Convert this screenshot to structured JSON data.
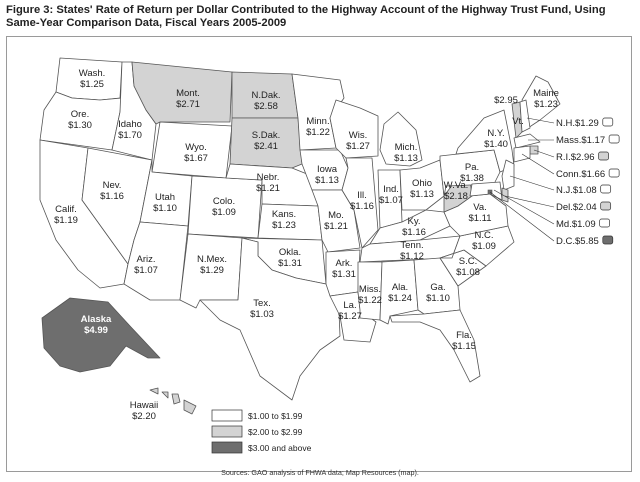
{
  "title": "Figure 3: States' Rate of Return per Dollar Contributed to the Highway Account of the Highway Trust Fund, Using Same-Year Comparison Data, Fiscal Years 2005-2009",
  "source": "Sources: GAO analysis of FHWA data; Map Resources (map).",
  "colors": {
    "low": "#ffffff",
    "mid": "#d3d3d3",
    "high": "#6e6e6e",
    "outline": "#555555"
  },
  "legend": [
    {
      "label": "$1.00 to $1.99",
      "category": "low"
    },
    {
      "label": "$2.00 to $2.99",
      "category": "mid"
    },
    {
      "label": "$3.00 and above",
      "category": "high"
    }
  ],
  "states": [
    {
      "name": "Wash.",
      "value": "$1.25",
      "category": "low"
    },
    {
      "name": "Ore.",
      "value": "$1.30",
      "category": "low"
    },
    {
      "name": "Calif.",
      "value": "$1.19",
      "category": "low"
    },
    {
      "name": "Idaho",
      "value": "$1.70",
      "category": "low"
    },
    {
      "name": "Nev.",
      "value": "$1.16",
      "category": "low"
    },
    {
      "name": "Mont.",
      "value": "$2.71",
      "category": "mid"
    },
    {
      "name": "Wyo.",
      "value": "$1.67",
      "category": "low"
    },
    {
      "name": "Utah",
      "value": "$1.10",
      "category": "low"
    },
    {
      "name": "Ariz.",
      "value": "$1.07",
      "category": "low"
    },
    {
      "name": "Colo.",
      "value": "$1.09",
      "category": "low"
    },
    {
      "name": "N.Mex.",
      "value": "$1.29",
      "category": "low"
    },
    {
      "name": "N.Dak.",
      "value": "$2.58",
      "category": "mid"
    },
    {
      "name": "S.Dak.",
      "value": "$2.41",
      "category": "mid"
    },
    {
      "name": "Nebr.",
      "value": "$1.21",
      "category": "low"
    },
    {
      "name": "Kans.",
      "value": "$1.23",
      "category": "low"
    },
    {
      "name": "Okla.",
      "value": "$1.31",
      "category": "low"
    },
    {
      "name": "Tex.",
      "value": "$1.03",
      "category": "low"
    },
    {
      "name": "Minn.",
      "value": "$1.22",
      "category": "low"
    },
    {
      "name": "Iowa",
      "value": "$1.13",
      "category": "low"
    },
    {
      "name": "Mo.",
      "value": "$1.21",
      "category": "low"
    },
    {
      "name": "Ark.",
      "value": "$1.31",
      "category": "low"
    },
    {
      "name": "La.",
      "value": "$1.27",
      "category": "low"
    },
    {
      "name": "Wis.",
      "value": "$1.27",
      "category": "low"
    },
    {
      "name": "Ill.",
      "value": "$1.16",
      "category": "low"
    },
    {
      "name": "Mich.",
      "value": "$1.13",
      "category": "low"
    },
    {
      "name": "Ind.",
      "value": "$1.07",
      "category": "low"
    },
    {
      "name": "Ohio",
      "value": "$1.13",
      "category": "low"
    },
    {
      "name": "Ky.",
      "value": "$1.16",
      "category": "low"
    },
    {
      "name": "Tenn.",
      "value": "$1.12",
      "category": "low"
    },
    {
      "name": "Miss.",
      "value": "$1.22",
      "category": "low"
    },
    {
      "name": "Ala.",
      "value": "$1.24",
      "category": "low"
    },
    {
      "name": "Ga.",
      "value": "$1.10",
      "category": "low"
    },
    {
      "name": "Fla.",
      "value": "$1.15",
      "category": "low"
    },
    {
      "name": "S.C.",
      "value": "$1.08",
      "category": "low"
    },
    {
      "name": "N.C.",
      "value": "$1.09",
      "category": "low"
    },
    {
      "name": "Va.",
      "value": "$1.11",
      "category": "low"
    },
    {
      "name": "W.Va.",
      "value": "$2.18",
      "category": "mid"
    },
    {
      "name": "Pa.",
      "value": "$1.38",
      "category": "low"
    },
    {
      "name": "N.Y.",
      "value": "$1.40",
      "category": "low"
    },
    {
      "name": "Vt.",
      "value": "$2.95",
      "category": "mid"
    },
    {
      "name": "Maine",
      "value": "$1.23",
      "category": "low"
    },
    {
      "name": "N.H.",
      "value": "$1.29",
      "category": "low"
    },
    {
      "name": "Mass.",
      "value": "$1.17",
      "category": "low"
    },
    {
      "name": "R.I.",
      "value": "$2.96",
      "category": "mid"
    },
    {
      "name": "Conn.",
      "value": "$1.66",
      "category": "low"
    },
    {
      "name": "N.J.",
      "value": "$1.08",
      "category": "low"
    },
    {
      "name": "Del.",
      "value": "$2.04",
      "category": "mid"
    },
    {
      "name": "Md.",
      "value": "$1.09",
      "category": "low"
    },
    {
      "name": "D.C.",
      "value": "$5.85",
      "category": "high"
    },
    {
      "name": "Alaska",
      "value": "$4.99",
      "category": "high"
    },
    {
      "name": "Hawaii",
      "value": "$2.20",
      "category": "mid"
    }
  ]
}
